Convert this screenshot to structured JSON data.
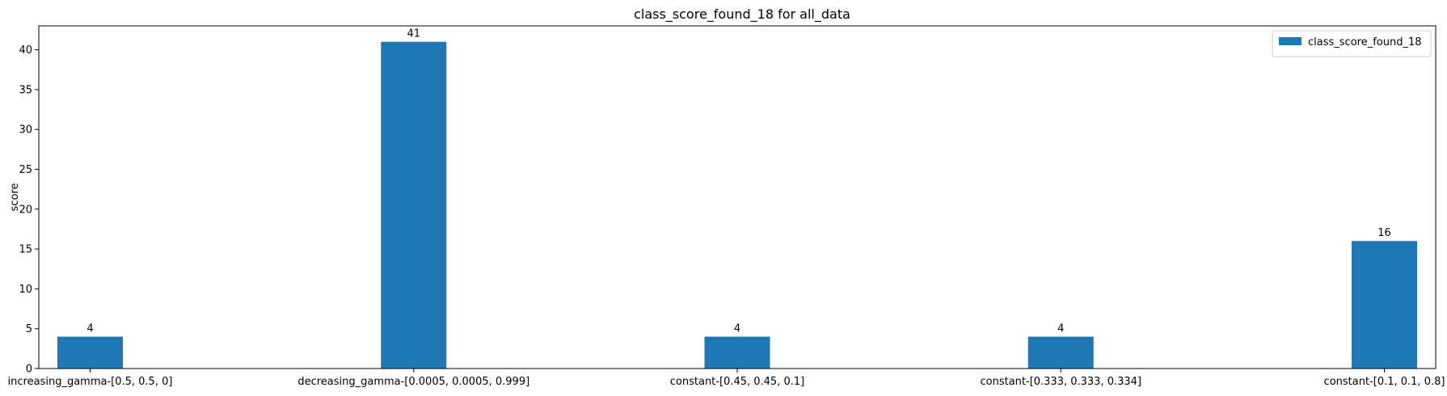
{
  "chart_data": {
    "type": "bar",
    "title": "class_score_found_18 for all_data",
    "xlabel": "",
    "ylabel": "score",
    "categories": [
      "increasing_gamma-[0.5, 0.5, 0]",
      "decreasing_gamma-[0.0005, 0.0005, 0.999]",
      "constant-[0.45, 0.45, 0.1]",
      "constant-[0.333, 0.333, 0.334]",
      "constant-[0.1, 0.1, 0.8]"
    ],
    "series": [
      {
        "name": "class_score_found_18",
        "values": [
          4,
          41,
          4,
          4,
          16
        ],
        "color": "#1f77b4"
      }
    ],
    "data_labels": [
      "4",
      "41",
      "4",
      "4",
      "16"
    ],
    "ylim": [
      0,
      43
    ],
    "yticks": [
      0,
      5,
      10,
      15,
      20,
      25,
      30,
      35,
      40
    ],
    "grid": false,
    "legend_position": "top-right"
  }
}
